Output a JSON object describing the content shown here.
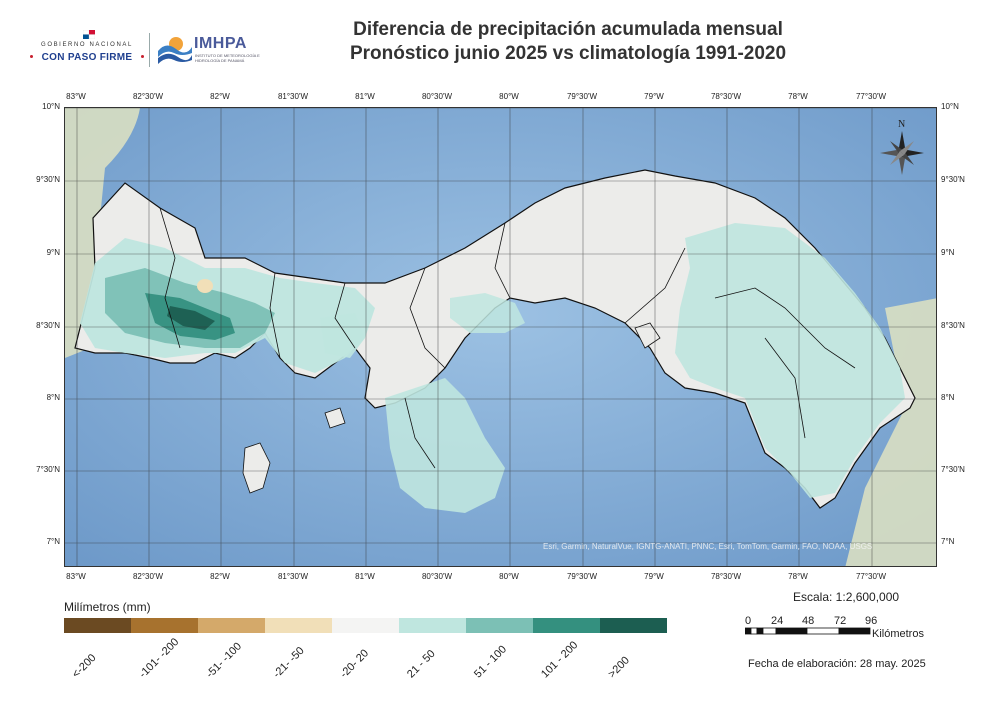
{
  "header": {
    "gov_logo_line1": "GOBIERNO NACIONAL",
    "gov_logo_line2": "CON PASO FIRME",
    "imhpa_logo": "IMHPA",
    "imhpa_subtitle": "INSTITUTO DE METEOROLOGÍA E HIDROLOGÍA DE PANAMÁ",
    "title_line1": "Diferencia de precipitación acumulada mensual",
    "title_line2": "Pronóstico junio 2025 vs climatología 1991-2020"
  },
  "map": {
    "longitude_ticks": [
      "83°W",
      "82°30'W",
      "82°W",
      "81°30'W",
      "81°W",
      "80°30'W",
      "80°W",
      "79°30'W",
      "79°W",
      "78°30'W",
      "78°W",
      "77°30'W"
    ],
    "latitude_ticks": [
      "10°N",
      "9°30'N",
      "9°N",
      "8°30'N",
      "8°N",
      "7°30'N",
      "7°N"
    ],
    "north_arrow_label": "N",
    "attribution": "Esri, Garmin, NaturalVue, IGNTG-ANATI, PNNC, Esri, TomTom, Garmin, FAO, NOAA, USGS",
    "colors": {
      "sea": "#8fb6dc",
      "sea_deep": "#6f9ccc",
      "neighbor_land": "#dfe3c9",
      "land_neutral": "#ececea",
      "border": "#111111"
    }
  },
  "legend": {
    "title": "Milímetros (mm)",
    "classes": [
      {
        "label": "<-200",
        "color": "#6b4a22"
      },
      {
        "label": "-101- -200",
        "color": "#a7722e"
      },
      {
        "label": "-51- -100",
        "color": "#d4a96a"
      },
      {
        "label": "-21- -50",
        "color": "#f1dfb8"
      },
      {
        "label": "-20- 20",
        "color": "#f4f4f3"
      },
      {
        "label": "21 - 50",
        "color": "#bfe6df"
      },
      {
        "label": "51 - 100",
        "color": "#7cc0b5"
      },
      {
        "label": "101 - 200",
        "color": "#34907f"
      },
      {
        "label": ">200",
        "color": "#1c5e51"
      }
    ]
  },
  "scale": {
    "text": "Escala: 1:2,600,000",
    "ticks": [
      "0",
      "24",
      "48",
      "72",
      "96"
    ],
    "unit": "Kilómetros"
  },
  "footer": {
    "fecha": "Fecha de elaboración: 28 may. 2025"
  }
}
